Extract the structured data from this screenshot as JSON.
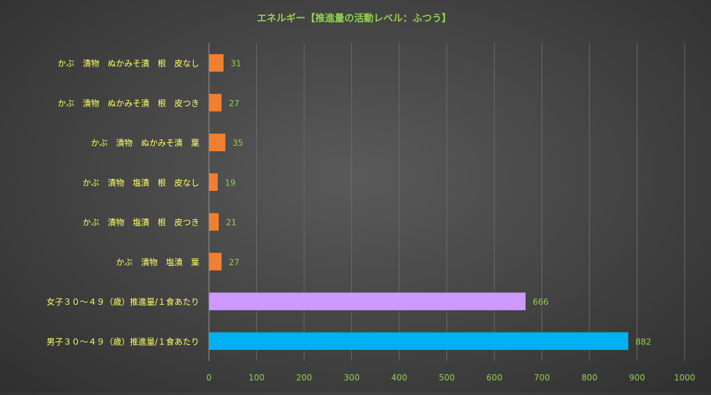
{
  "chart_data": {
    "type": "bar",
    "orientation": "horizontal",
    "title": "エネルギー【推進量の活動レベル：ふつう】",
    "categories": [
      "かぶ　漬物　ぬかみそ漬　根　皮なし",
      "かぶ　漬物　ぬかみそ漬　根　皮つき",
      "かぶ　漬物　ぬかみそ漬　葉",
      "かぶ　漬物　塩漬　根　皮なし",
      "かぶ　漬物　塩漬　根　皮つき",
      "かぶ　漬物　塩漬　葉",
      "女子３０～４９（歳）推進量/１食あたり",
      "男子３０～４９（歳）推進量/１食あたり"
    ],
    "values": [
      31,
      27,
      35,
      19,
      21,
      27,
      666,
      882
    ],
    "value_labels": [
      "31",
      "27",
      "35",
      "19",
      "21",
      "27",
      "666",
      "882"
    ],
    "bar_colors": [
      "#f07f2f",
      "#f07f2f",
      "#f07f2f",
      "#f07f2f",
      "#f07f2f",
      "#f07f2f",
      "#cc99ff",
      "#00b0f0"
    ],
    "xlim": [
      0,
      1000
    ],
    "x_ticks": [
      0,
      100,
      200,
      300,
      400,
      500,
      600,
      700,
      800,
      900,
      1000
    ],
    "x_tick_labels": [
      "0",
      "100",
      "200",
      "300",
      "400",
      "500",
      "600",
      "700",
      "800",
      "900",
      "1000"
    ],
    "grid": "vertical",
    "legend": "none",
    "colors": {
      "title": "#92d050",
      "category_labels": "#ffff66",
      "tick_labels": "#92d050",
      "value_labels": "#92d050",
      "grid": "#6a6a6a",
      "axis": "#9a9a9a"
    }
  }
}
